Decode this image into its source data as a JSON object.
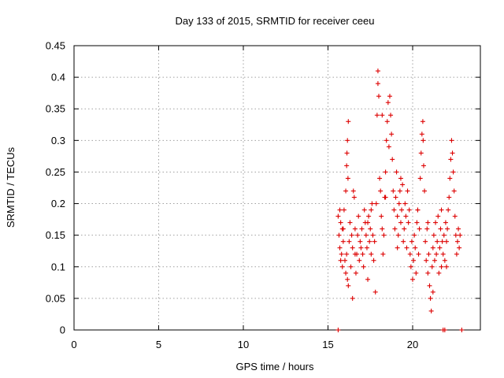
{
  "chart_data": {
    "type": "scatter",
    "title": "Day 133 of 2015, SRMTID for receiver ceeu",
    "xlabel": "GPS time / hours",
    "ylabel": "SRMTID / TECUs",
    "xlim": [
      0,
      24
    ],
    "ylim": [
      0,
      0.45
    ],
    "xticks": [
      0,
      5,
      10,
      15,
      20
    ],
    "xtick_labels": [
      "0",
      "5",
      "10",
      "15",
      "20"
    ],
    "yticks": [
      0,
      0.05,
      0.1,
      0.15,
      0.2,
      0.25,
      0.3,
      0.35,
      0.4,
      0.45
    ],
    "ytick_labels": [
      "0",
      "0.05",
      "0.1",
      "0.15",
      "0.2",
      "0.25",
      "0.3",
      "0.35",
      "0.4",
      "0.45"
    ],
    "grid": true,
    "legend": "none",
    "marker": "plus",
    "color": "#dd0000",
    "series": [
      {
        "name": "SRMTID",
        "points": [
          [
            15.6,
            0.0
          ],
          [
            21.8,
            0.0
          ],
          [
            21.9,
            0.0
          ],
          [
            22.9,
            0.0
          ],
          [
            15.6,
            0.18
          ],
          [
            15.65,
            0.15
          ],
          [
            15.7,
            0.13
          ],
          [
            15.75,
            0.17
          ],
          [
            15.8,
            0.12
          ],
          [
            15.85,
            0.16
          ],
          [
            15.9,
            0.14
          ],
          [
            15.95,
            0.19
          ],
          [
            15.75,
            0.11
          ],
          [
            15.85,
            0.1
          ],
          [
            15.7,
            0.19
          ],
          [
            16.0,
            0.11
          ],
          [
            16.05,
            0.09
          ],
          [
            16.1,
            0.12
          ],
          [
            16.15,
            0.08
          ],
          [
            16.2,
            0.07
          ],
          [
            16.05,
            0.22
          ],
          [
            16.1,
            0.26
          ],
          [
            16.15,
            0.3
          ],
          [
            16.2,
            0.33
          ],
          [
            16.12,
            0.28
          ],
          [
            16.18,
            0.24
          ],
          [
            16.25,
            0.14
          ],
          [
            16.3,
            0.17
          ],
          [
            16.35,
            0.1
          ],
          [
            16.4,
            0.15
          ],
          [
            16.45,
            0.13
          ],
          [
            16.5,
            0.22
          ],
          [
            16.55,
            0.21
          ],
          [
            16.6,
            0.16
          ],
          [
            16.65,
            0.09
          ],
          [
            16.7,
            0.12
          ],
          [
            16.75,
            0.15
          ],
          [
            16.8,
            0.18
          ],
          [
            16.85,
            0.11
          ],
          [
            16.9,
            0.14
          ],
          [
            16.95,
            0.13
          ],
          [
            17.0,
            0.16
          ],
          [
            17.05,
            0.12
          ],
          [
            17.1,
            0.1
          ],
          [
            17.15,
            0.19
          ],
          [
            17.2,
            0.17
          ],
          [
            17.25,
            0.15
          ],
          [
            17.3,
            0.13
          ],
          [
            17.35,
            0.08
          ],
          [
            17.4,
            0.18
          ],
          [
            17.45,
            0.14
          ],
          [
            17.5,
            0.16
          ],
          [
            17.55,
            0.12
          ],
          [
            17.6,
            0.2
          ],
          [
            17.65,
            0.15
          ],
          [
            17.7,
            0.11
          ],
          [
            17.75,
            0.14
          ],
          [
            17.8,
            0.06
          ],
          [
            17.85,
            0.2
          ],
          [
            17.9,
            0.34
          ],
          [
            17.95,
            0.39
          ],
          [
            17.95,
            0.41
          ],
          [
            18.0,
            0.37
          ],
          [
            18.05,
            0.24
          ],
          [
            18.1,
            0.22
          ],
          [
            18.15,
            0.18
          ],
          [
            18.2,
            0.16
          ],
          [
            18.25,
            0.12
          ],
          [
            18.3,
            0.15
          ],
          [
            18.35,
            0.21
          ],
          [
            18.4,
            0.25
          ],
          [
            18.45,
            0.3
          ],
          [
            18.5,
            0.33
          ],
          [
            18.55,
            0.36
          ],
          [
            18.6,
            0.29
          ],
          [
            18.65,
            0.37
          ],
          [
            18.7,
            0.34
          ],
          [
            18.75,
            0.31
          ],
          [
            18.8,
            0.27
          ],
          [
            18.85,
            0.22
          ],
          [
            18.9,
            0.19
          ],
          [
            18.95,
            0.16
          ],
          [
            19.0,
            0.21
          ],
          [
            19.05,
            0.25
          ],
          [
            19.1,
            0.18
          ],
          [
            19.15,
            0.15
          ],
          [
            19.2,
            0.2
          ],
          [
            19.25,
            0.22
          ],
          [
            19.3,
            0.17
          ],
          [
            19.35,
            0.19
          ],
          [
            19.4,
            0.23
          ],
          [
            19.45,
            0.14
          ],
          [
            19.5,
            0.16
          ],
          [
            19.55,
            0.2
          ],
          [
            19.6,
            0.18
          ],
          [
            19.65,
            0.13
          ],
          [
            19.7,
            0.22
          ],
          [
            19.75,
            0.17
          ],
          [
            19.8,
            0.19
          ],
          [
            19.85,
            0.12
          ],
          [
            19.9,
            0.1
          ],
          [
            19.95,
            0.14
          ],
          [
            20.0,
            0.08
          ],
          [
            20.05,
            0.11
          ],
          [
            20.1,
            0.15
          ],
          [
            20.15,
            0.13
          ],
          [
            20.2,
            0.09
          ],
          [
            20.25,
            0.17
          ],
          [
            20.3,
            0.19
          ],
          [
            20.35,
            0.12
          ],
          [
            20.4,
            0.16
          ],
          [
            20.45,
            0.24
          ],
          [
            20.5,
            0.28
          ],
          [
            20.55,
            0.31
          ],
          [
            20.6,
            0.33
          ],
          [
            20.62,
            0.3
          ],
          [
            20.65,
            0.26
          ],
          [
            20.7,
            0.22
          ],
          [
            20.75,
            0.14
          ],
          [
            20.8,
            0.11
          ],
          [
            20.85,
            0.16
          ],
          [
            20.9,
            0.09
          ],
          [
            20.95,
            0.12
          ],
          [
            21.0,
            0.07
          ],
          [
            21.05,
            0.05
          ],
          [
            21.1,
            0.03
          ],
          [
            21.15,
            0.1
          ],
          [
            21.2,
            0.13
          ],
          [
            21.25,
            0.15
          ],
          [
            21.3,
            0.11
          ],
          [
            21.35,
            0.17
          ],
          [
            21.4,
            0.12
          ],
          [
            21.45,
            0.14
          ],
          [
            21.5,
            0.18
          ],
          [
            21.55,
            0.09
          ],
          [
            21.6,
            0.13
          ],
          [
            21.65,
            0.16
          ],
          [
            21.7,
            0.1
          ],
          [
            21.75,
            0.14
          ],
          [
            21.8,
            0.12
          ],
          [
            21.85,
            0.15
          ],
          [
            21.9,
            0.11
          ],
          [
            21.95,
            0.17
          ],
          [
            22.0,
            0.14
          ],
          [
            22.05,
            0.16
          ],
          [
            22.1,
            0.19
          ],
          [
            22.15,
            0.21
          ],
          [
            22.2,
            0.24
          ],
          [
            22.25,
            0.27
          ],
          [
            22.3,
            0.3
          ],
          [
            22.35,
            0.28
          ],
          [
            22.4,
            0.25
          ],
          [
            22.45,
            0.22
          ],
          [
            22.5,
            0.18
          ],
          [
            22.55,
            0.15
          ],
          [
            22.6,
            0.12
          ],
          [
            22.65,
            0.14
          ],
          [
            22.7,
            0.16
          ],
          [
            22.75,
            0.13
          ],
          [
            22.8,
            0.15
          ],
          [
            16.45,
            0.05
          ],
          [
            17.55,
            0.19
          ],
          [
            18.2,
            0.34
          ],
          [
            19.3,
            0.24
          ],
          [
            20.3,
            0.19
          ],
          [
            21.2,
            0.06
          ],
          [
            15.9,
            0.16
          ],
          [
            16.6,
            0.12
          ],
          [
            17.35,
            0.17
          ],
          [
            18.4,
            0.21
          ],
          [
            19.1,
            0.13
          ],
          [
            20.9,
            0.17
          ],
          [
            21.7,
            0.19
          ],
          [
            22.0,
            0.1
          ]
        ]
      }
    ]
  }
}
